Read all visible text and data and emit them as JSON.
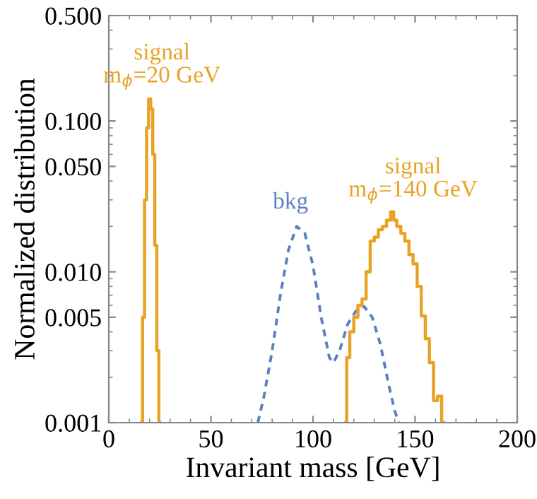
{
  "chart_data": {
    "type": "step",
    "xlabel": "Invariant mass [GeV]",
    "ylabel": "Normalized distribution",
    "log": "y",
    "xlim": [
      0,
      200
    ],
    "xticks": [
      0,
      50,
      100,
      150,
      200
    ],
    "ylim": [
      0.001,
      0.5
    ],
    "yticks": [
      {
        "value": 0.001,
        "label": "0.001"
      },
      {
        "value": 0.005,
        "label": "0.005"
      },
      {
        "value": 0.01,
        "label": "0.010"
      },
      {
        "value": 0.05,
        "label": "0.050"
      },
      {
        "value": 0.1,
        "label": "0.100"
      },
      {
        "value": 0.5,
        "label": "0.500"
      }
    ],
    "grid": false,
    "legend": false,
    "series": [
      {
        "color": "#e8a225",
        "line_style": "solid",
        "x": [
          16,
          17,
          18,
          19,
          20,
          21,
          22,
          23,
          24,
          25
        ],
        "values": [
          0.001,
          0.005,
          0.03,
          0.09,
          0.14,
          0.12,
          0.06,
          0.015,
          0.003,
          0.001
        ]
      },
      {
        "type": "line",
        "color": "#5b80c0",
        "line_style": "dashed",
        "x": [
          73,
          76,
          80,
          84,
          88,
          92,
          96,
          100,
          104,
          108,
          110,
          113,
          117,
          121,
          125,
          129,
          133,
          137,
          140,
          142
        ],
        "values": [
          0.001,
          0.0015,
          0.003,
          0.007,
          0.014,
          0.02,
          0.018,
          0.011,
          0.005,
          0.0027,
          0.0025,
          0.003,
          0.0045,
          0.0055,
          0.0059,
          0.005,
          0.0033,
          0.0018,
          0.0012,
          0.001
        ]
      },
      {
        "color": "#e8a225",
        "line_style": "solid",
        "x": [
          116,
          117,
          119,
          121,
          123,
          125,
          127,
          129,
          131,
          133,
          135,
          137,
          139,
          140,
          142,
          144,
          146,
          148,
          150,
          152,
          154,
          156,
          158,
          160,
          162,
          164
        ],
        "values": [
          0.001,
          0.0027,
          0.004,
          0.005,
          0.006,
          0.0066,
          0.01,
          0.016,
          0.017,
          0.019,
          0.02,
          0.022,
          0.025,
          0.022,
          0.02,
          0.018,
          0.016,
          0.013,
          0.0113,
          0.008,
          0.0051,
          0.0036,
          0.0025,
          0.0014,
          0.0015,
          0.001
        ]
      }
    ],
    "annotations": [
      "signal\nm$_{ϕ}$=20 GeV",
      "bkg",
      "signal\nm$_{ϕ}$=140 GeV"
    ]
  }
}
